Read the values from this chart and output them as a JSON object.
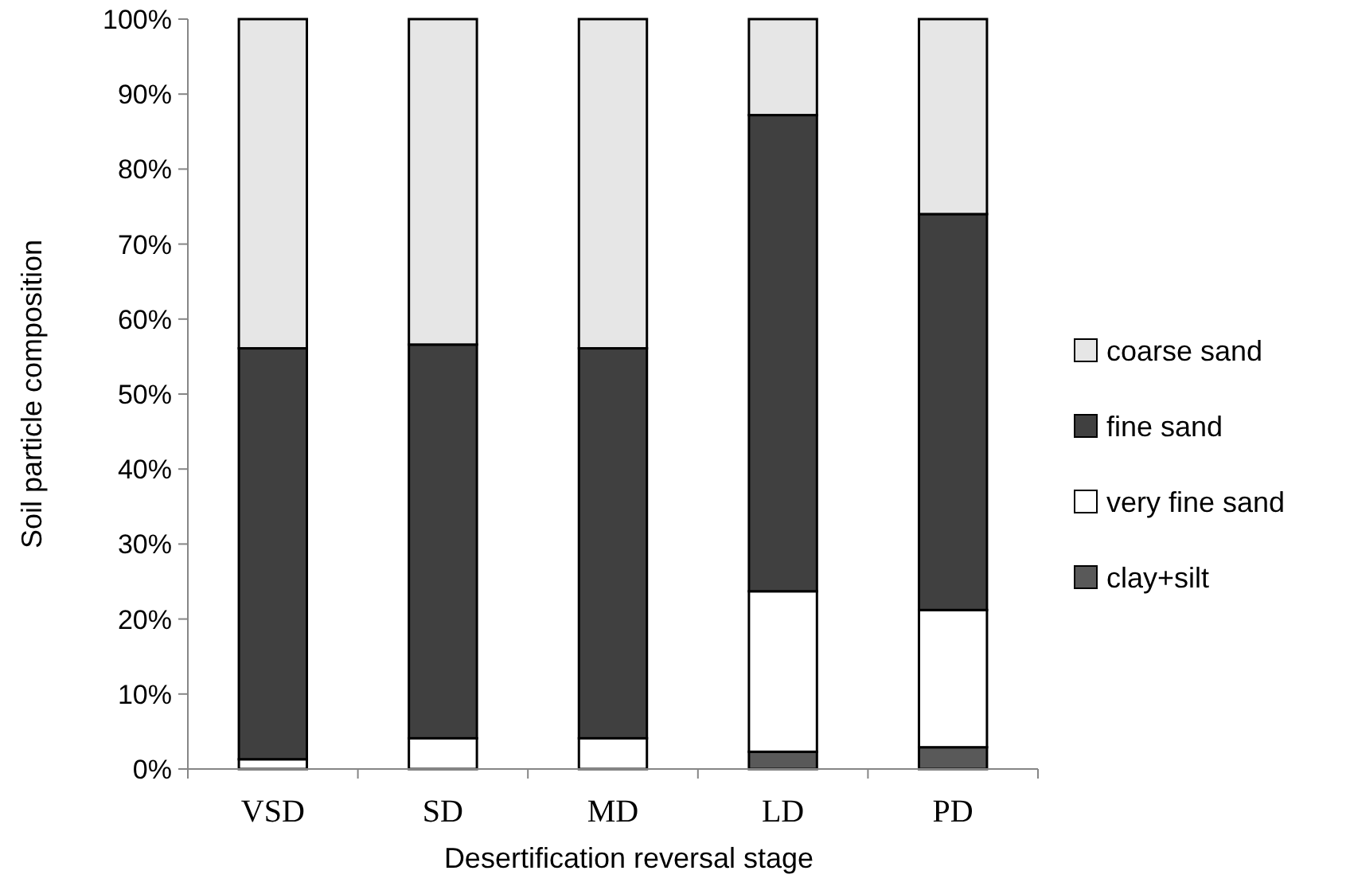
{
  "chart_data": {
    "type": "bar",
    "stacked": true,
    "xlabel": "Desertification reversal stage",
    "ylabel": "Soil particle composition",
    "categories": [
      "VSD",
      "SD",
      "MD",
      "LD",
      "PD"
    ],
    "ylim": [
      0,
      100
    ],
    "yticks": [
      {
        "value": 0,
        "label": "0%"
      },
      {
        "value": 10,
        "label": "10%"
      },
      {
        "value": 20,
        "label": "20%"
      },
      {
        "value": 30,
        "label": "30%"
      },
      {
        "value": 40,
        "label": "40%"
      },
      {
        "value": 50,
        "label": "50%"
      },
      {
        "value": 60,
        "label": "60%"
      },
      {
        "value": 70,
        "label": "70%"
      },
      {
        "value": 80,
        "label": "80%"
      },
      {
        "value": 90,
        "label": "90%"
      },
      {
        "value": 100,
        "label": "100%"
      }
    ],
    "grid": false,
    "legend": "right",
    "series": [
      {
        "name": "clay+silt",
        "color": "#595959",
        "values": [
          null,
          null,
          null,
          2.3,
          2.9
        ]
      },
      {
        "name": "very fine sand",
        "color": "#ffffff",
        "values": [
          1.3,
          4.1,
          4.1,
          21.4,
          18.3
        ]
      },
      {
        "name": "fine sand",
        "color": "#404040",
        "values": [
          54.8,
          52.5,
          52.0,
          63.5,
          52.8
        ]
      },
      {
        "name": "coarse sand",
        "color": "#e6e6e6",
        "values": [
          43.9,
          43.4,
          43.9,
          12.8,
          26.0
        ]
      }
    ]
  }
}
